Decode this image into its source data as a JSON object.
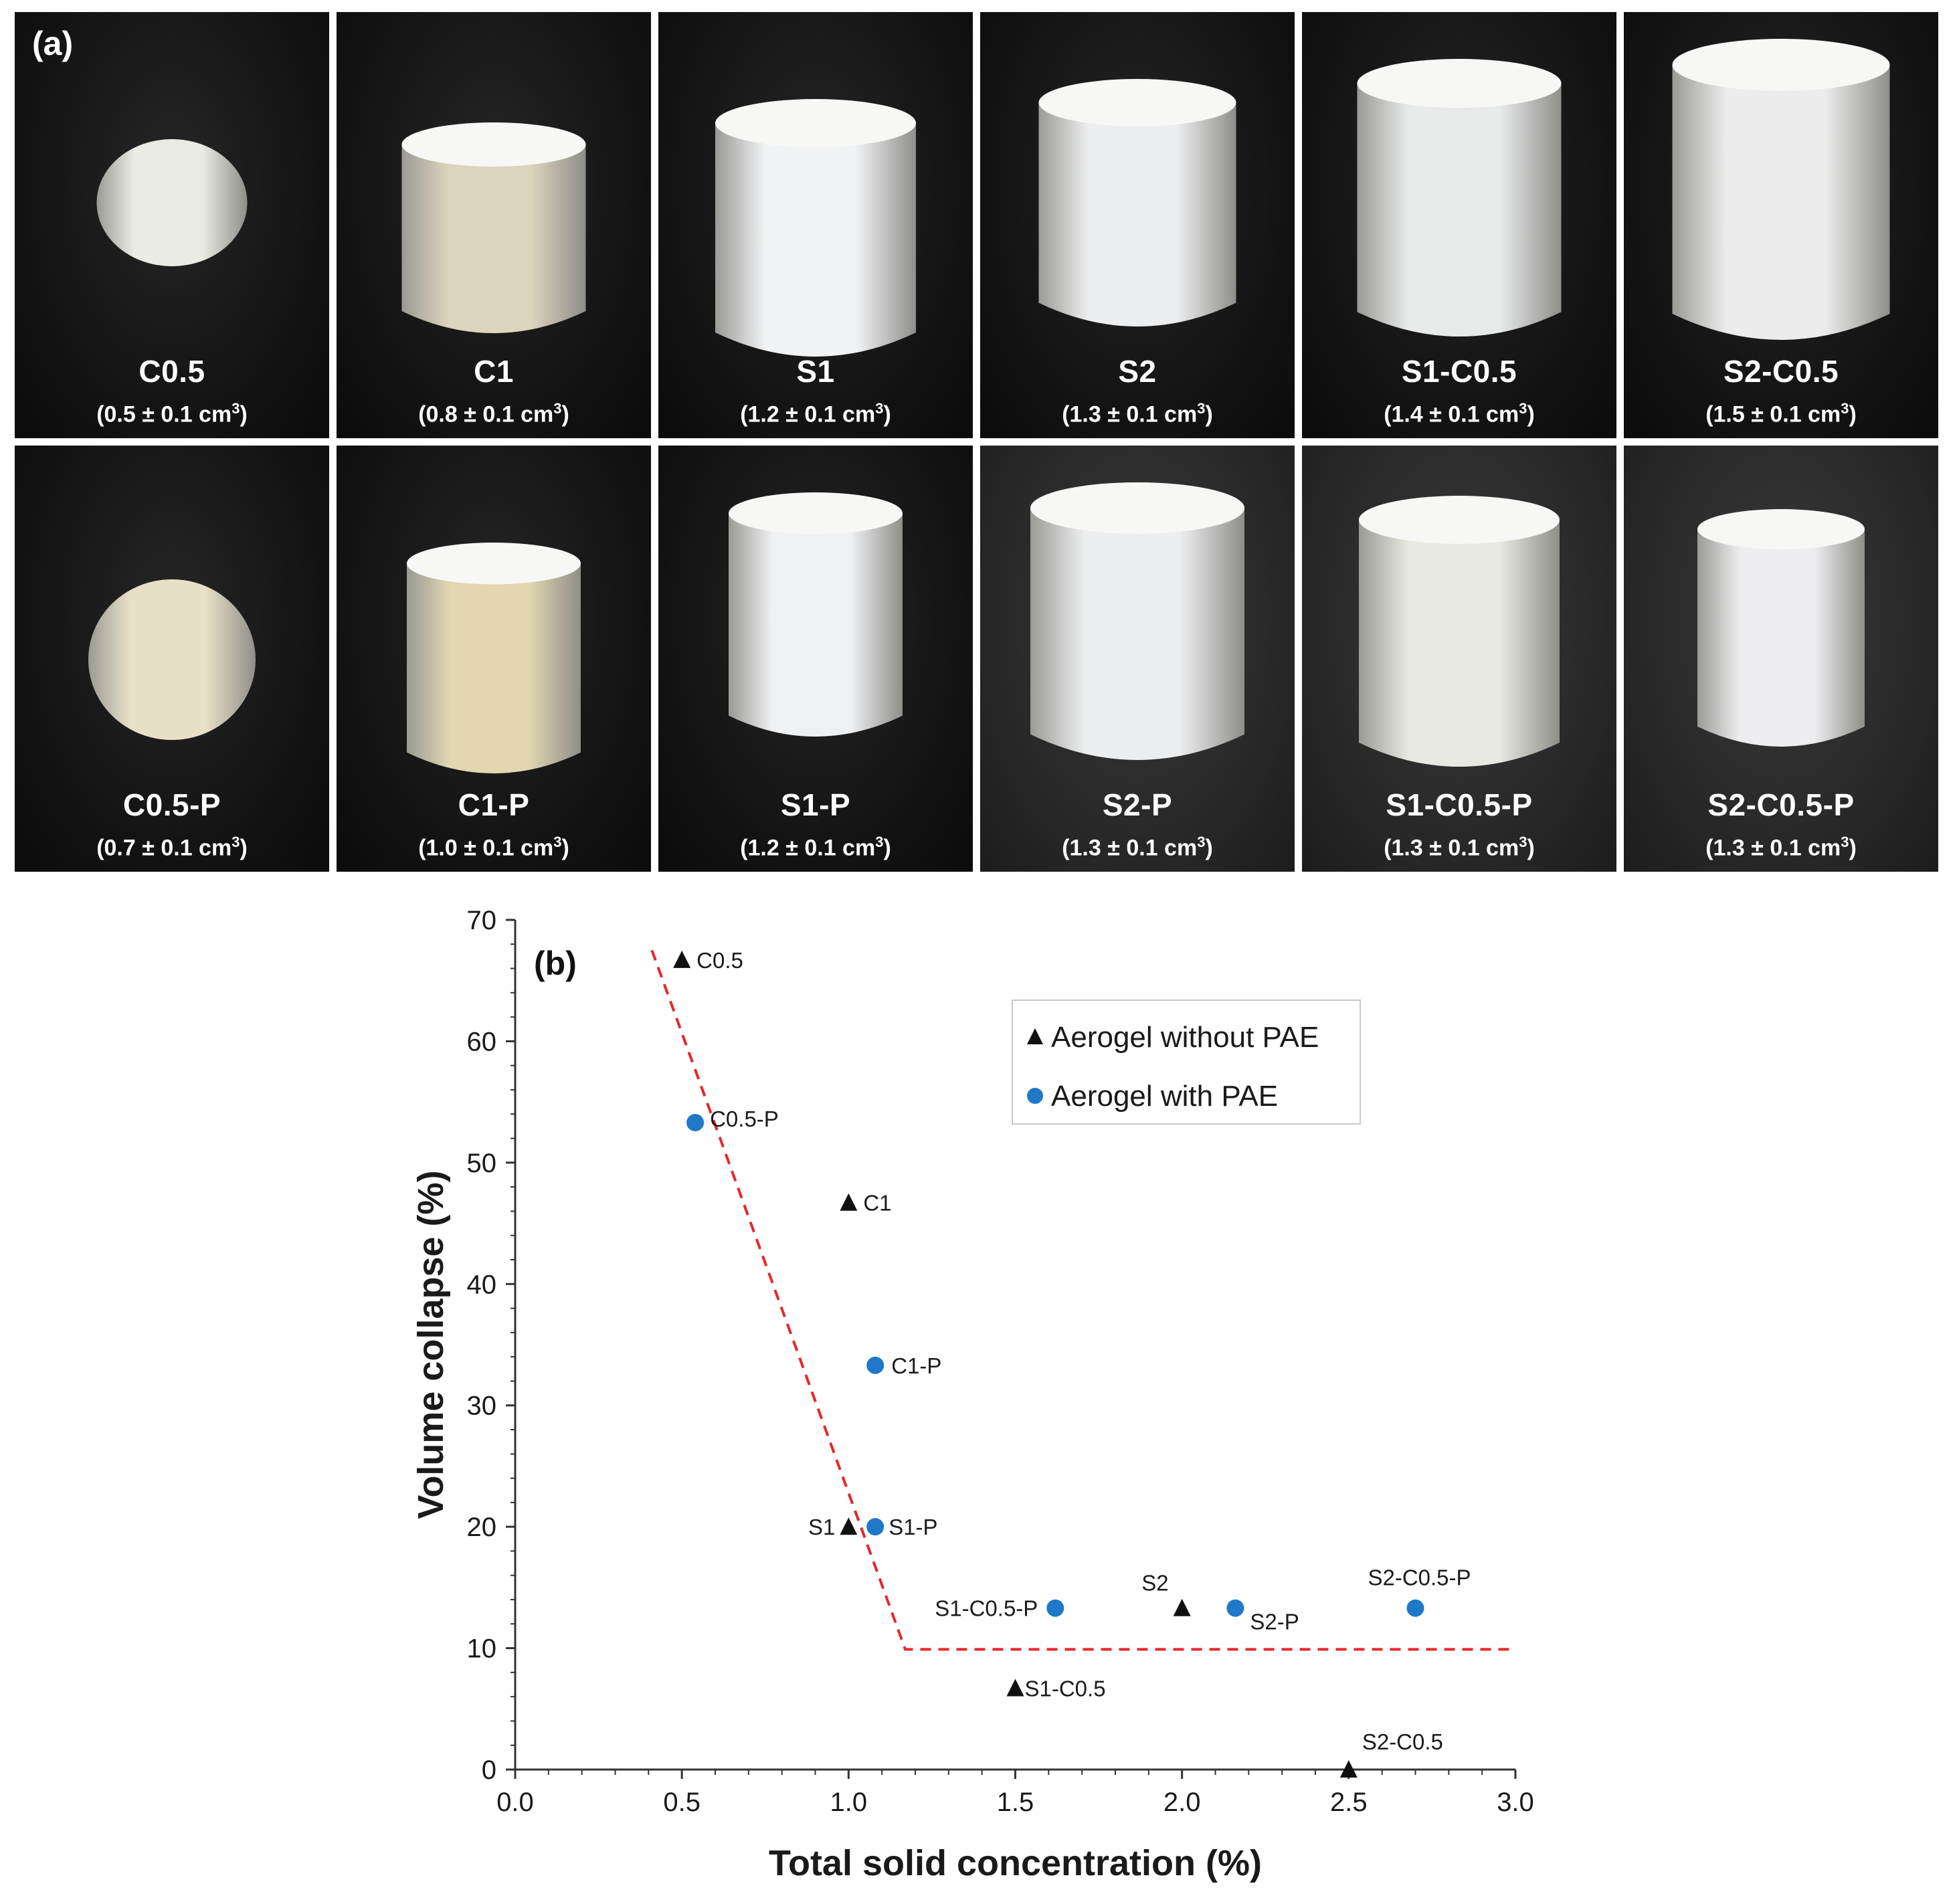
{
  "panel_a": {
    "label": "(a)",
    "samples": [
      {
        "name": "C0.5",
        "volume": "(0.5 ± 0.1 cm",
        "unit_sup": "3",
        "close": ")"
      },
      {
        "name": "C1",
        "volume": "(0.8 ± 0.1 cm",
        "unit_sup": "3",
        "close": ")"
      },
      {
        "name": "S1",
        "volume": "(1.2 ± 0.1 cm",
        "unit_sup": "3",
        "close": ")"
      },
      {
        "name": "S2",
        "volume": "(1.3 ± 0.1 cm",
        "unit_sup": "3",
        "close": ")"
      },
      {
        "name": "S1-C0.5",
        "volume": "(1.4 ± 0.1 cm",
        "unit_sup": "3",
        "close": ")"
      },
      {
        "name": "S2-C0.5",
        "volume": "(1.5 ± 0.1 cm",
        "unit_sup": "3",
        "close": ")"
      },
      {
        "name": "C0.5-P",
        "volume": "(0.7 ± 0.1 cm",
        "unit_sup": "3",
        "close": ")"
      },
      {
        "name": "C1-P",
        "volume": "(1.0 ± 0.1 cm",
        "unit_sup": "3",
        "close": ")"
      },
      {
        "name": "S1-P",
        "volume": "(1.2 ± 0.1 cm",
        "unit_sup": "3",
        "close": ")"
      },
      {
        "name": "S2-P",
        "volume": "(1.3 ± 0.1 cm",
        "unit_sup": "3",
        "close": ")"
      },
      {
        "name": "S1-C0.5-P",
        "volume": "(1.3 ± 0.1 cm",
        "unit_sup": "3",
        "close": ")"
      },
      {
        "name": "S2-C0.5-P",
        "volume": "(1.3 ± 0.1 cm",
        "unit_sup": "3",
        "close": ")"
      }
    ]
  },
  "chart_data": {
    "type": "scatter",
    "panel_label": "(b)",
    "xlabel": "Total solid concentration (%)",
    "ylabel": "Volume collapse (%)",
    "xlim": [
      0.0,
      3.0
    ],
    "ylim": [
      0,
      70
    ],
    "x_ticks": [
      "0.0",
      "0.5",
      "1.0",
      "1.5",
      "2.0",
      "2.5",
      "3.0"
    ],
    "y_ticks": [
      "0",
      "10",
      "20",
      "30",
      "40",
      "50",
      "60",
      "70"
    ],
    "grid": false,
    "legend_position": "top-right",
    "series": [
      {
        "name": "Aerogel without PAE",
        "marker": "triangle",
        "color": "#111111",
        "points": [
          {
            "label": "C0.5",
            "x": 0.5,
            "y": 66.7
          },
          {
            "label": "C1",
            "x": 1.0,
            "y": 46.7
          },
          {
            "label": "S1",
            "x": 1.0,
            "y": 20.0
          },
          {
            "label": "S1-C0.5",
            "x": 1.5,
            "y": 6.7
          },
          {
            "label": "S2",
            "x": 2.0,
            "y": 13.3
          },
          {
            "label": "S2-C0.5",
            "x": 2.5,
            "y": 0.0
          }
        ]
      },
      {
        "name": "Aerogel with PAE",
        "marker": "circle",
        "color": "#1f78c8",
        "points": [
          {
            "label": "C0.5-P",
            "x": 0.54,
            "y": 53.3
          },
          {
            "label": "C1-P",
            "x": 1.08,
            "y": 33.3
          },
          {
            "label": "S1-P",
            "x": 1.08,
            "y": 20.0
          },
          {
            "label": "S1-C0.5-P",
            "x": 1.62,
            "y": 13.3
          },
          {
            "label": "S2-P",
            "x": 2.16,
            "y": 13.3
          },
          {
            "label": "S2-C0.5-P",
            "x": 2.7,
            "y": 13.3
          }
        ]
      }
    ],
    "trend_line": {
      "style": "dashed",
      "color": "#e8262a",
      "points": [
        [
          0.41,
          67.5
        ],
        [
          1.17,
          9.9
        ],
        [
          3.0,
          9.9
        ]
      ]
    }
  }
}
